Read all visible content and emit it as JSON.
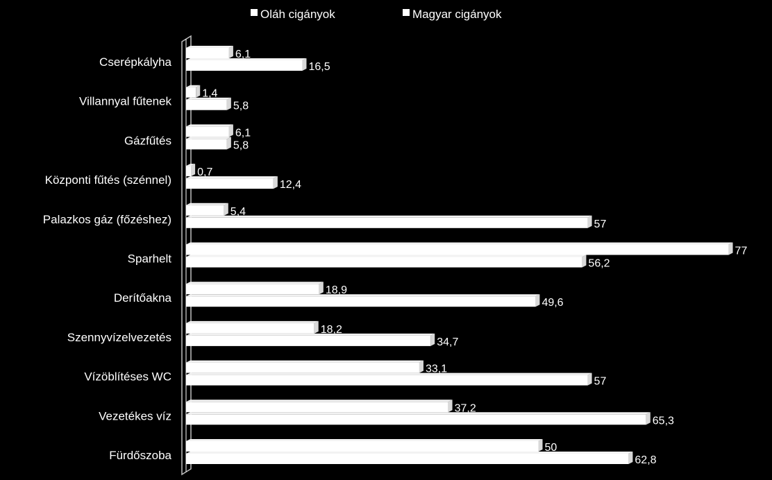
{
  "chart_data": {
    "type": "bar",
    "orientation": "horizontal",
    "three_d": true,
    "categories": [
      "Cserépkályha",
      "Villannyal fűtenek",
      "Gázfűtés",
      "Központi fűtés (szénnel)",
      "Palazkos gáz (főzéshez)",
      "Sparhelt",
      "Derítőakna",
      "Szennyvízelvezetés",
      "Vízöblítéses WC",
      "Vezetékes víz",
      "Fürdőszoba"
    ],
    "series": [
      {
        "name": "Oláh cigányok",
        "values": [
          6.1,
          1.4,
          6.1,
          0.7,
          5.4,
          77,
          18.9,
          18.2,
          33.1,
          37.2,
          50
        ],
        "labels": [
          "6,1",
          "1,4",
          "6,1",
          "0,7",
          "5,4",
          "77",
          "18,9",
          "18,2",
          "33,1",
          "37,2",
          "50"
        ]
      },
      {
        "name": "Magyar cigányok",
        "values": [
          16.5,
          5.8,
          5.8,
          12.4,
          57,
          56.2,
          49.6,
          34.7,
          57,
          65.3,
          62.8
        ],
        "labels": [
          "16,5",
          "5,8",
          "5,8",
          "12,4",
          "57",
          "56,2",
          "49,6",
          "34,7",
          "57",
          "65,3",
          "62,8"
        ]
      }
    ],
    "legend_position": "top",
    "grid": false,
    "bar_color": "#ffffff",
    "background": "#000000"
  }
}
